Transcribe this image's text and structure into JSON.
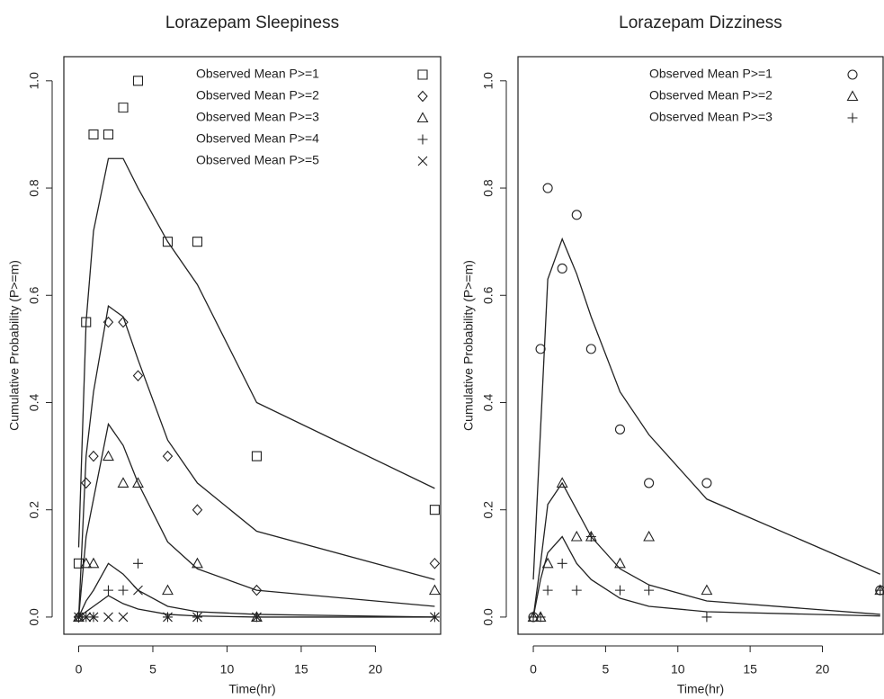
{
  "chart_data": [
    {
      "type": "scatter",
      "title": "Lorazepam Sleepiness",
      "xlabel": "Time(hr)",
      "ylabel": "Cumulative Probability (P>=m)",
      "x": [
        0,
        0.5,
        1,
        2,
        3,
        4,
        6,
        8,
        12,
        24
      ],
      "xlim": [
        -1,
        24.4
      ],
      "ylim": [
        -0.032,
        1.045
      ],
      "xticks": [
        0,
        5,
        10,
        15,
        20
      ],
      "yticks": [
        {
          "value": 0,
          "label": "0.0"
        },
        0.2,
        0.4,
        0.6,
        0.8,
        {
          "value": 1,
          "label": "1.0"
        }
      ],
      "legend": "top-right",
      "series": [
        {
          "name": "Observed Mean P>=1",
          "marker": "square",
          "color": "#222222",
          "values": [
            0.1,
            0.55,
            0.9,
            0.9,
            0.95,
            1.0,
            0.7,
            0.7,
            0.3,
            0.2
          ]
        },
        {
          "name": "Observed Mean P>=2",
          "marker": "diamond",
          "color": "#222222",
          "values": [
            0,
            0.25,
            0.3,
            0.55,
            0.55,
            0.45,
            0.3,
            0.2,
            0.05,
            0.1
          ]
        },
        {
          "name": "Observed Mean P>=3",
          "marker": "triangle",
          "color": "#222222",
          "values": [
            0,
            0.1,
            0.1,
            0.3,
            0.25,
            0.25,
            0.05,
            0.1,
            0,
            0.05
          ]
        },
        {
          "name": "Observed Mean P>=4",
          "marker": "plus",
          "color": "#222222",
          "values": [
            0,
            0,
            0,
            0.05,
            0.05,
            0.1,
            0,
            0,
            0,
            0
          ]
        },
        {
          "name": "Observed Mean P>=5",
          "marker": "cross",
          "color": "#222222",
          "values": [
            0,
            0,
            0,
            0,
            0,
            0.05,
            0,
            0,
            0,
            0
          ]
        }
      ],
      "model_lines": [
        {
          "color": "#222222",
          "values": [
            0.13,
            0.55,
            0.72,
            0.855,
            0.855,
            0.8,
            0.7,
            0.62,
            0.4,
            0.24
          ]
        },
        {
          "color": "#222222",
          "values": [
            0,
            0.3,
            0.42,
            0.58,
            0.56,
            0.48,
            0.33,
            0.25,
            0.16,
            0.07
          ]
        },
        {
          "color": "#222222",
          "values": [
            0,
            0.15,
            0.22,
            0.36,
            0.32,
            0.25,
            0.14,
            0.09,
            0.05,
            0.02
          ]
        },
        {
          "color": "#222222",
          "values": [
            0,
            0.03,
            0.05,
            0.1,
            0.08,
            0.05,
            0.02,
            0.01,
            0.005,
            0
          ]
        },
        {
          "color": "#222222",
          "values": [
            0,
            0.01,
            0.02,
            0.04,
            0.025,
            0.015,
            0.005,
            0.002,
            0,
            0
          ]
        }
      ]
    },
    {
      "type": "scatter",
      "title": "Lorazepam Dizziness",
      "xlabel": "Time(hr)",
      "ylabel": "Cumulative Probability (P>=m)",
      "x": [
        0,
        0.5,
        1,
        2,
        3,
        4,
        6,
        8,
        12,
        24
      ],
      "xlim": [
        -1.06,
        24.2
      ],
      "ylim": [
        -0.032,
        1.045
      ],
      "xticks": [
        0,
        5,
        10,
        15,
        20
      ],
      "yticks": [
        {
          "value": 0,
          "label": "0.0"
        },
        0.2,
        0.4,
        0.6,
        0.8,
        {
          "value": 1,
          "label": "1.0"
        }
      ],
      "legend": "top-right",
      "series": [
        {
          "name": "Observed Mean P>=1",
          "marker": "circle",
          "color": "#222222",
          "values": [
            0,
            0.5,
            0.8,
            0.65,
            0.75,
            0.5,
            0.35,
            0.25,
            0.25,
            0.05
          ]
        },
        {
          "name": "Observed Mean P>=2",
          "marker": "triangle",
          "color": "#222222",
          "values": [
            0,
            0,
            0.1,
            0.25,
            0.15,
            0.15,
            0.1,
            0.15,
            0.05,
            0.05
          ]
        },
        {
          "name": "Observed Mean P>=3",
          "marker": "plus",
          "color": "#222222",
          "values": [
            0,
            0,
            0.05,
            0.1,
            0.05,
            0.15,
            0.05,
            0.05,
            0,
            0.05
          ]
        }
      ],
      "model_lines": [
        {
          "color": "#222222",
          "values": [
            0.07,
            0.35,
            0.63,
            0.705,
            0.64,
            0.56,
            0.42,
            0.34,
            0.22,
            0.08
          ]
        },
        {
          "color": "#222222",
          "values": [
            0,
            0.1,
            0.21,
            0.25,
            0.2,
            0.15,
            0.09,
            0.06,
            0.03,
            0.005
          ]
        },
        {
          "color": "#222222",
          "values": [
            0,
            0.07,
            0.12,
            0.15,
            0.1,
            0.07,
            0.035,
            0.02,
            0.01,
            0.002
          ]
        }
      ]
    }
  ]
}
